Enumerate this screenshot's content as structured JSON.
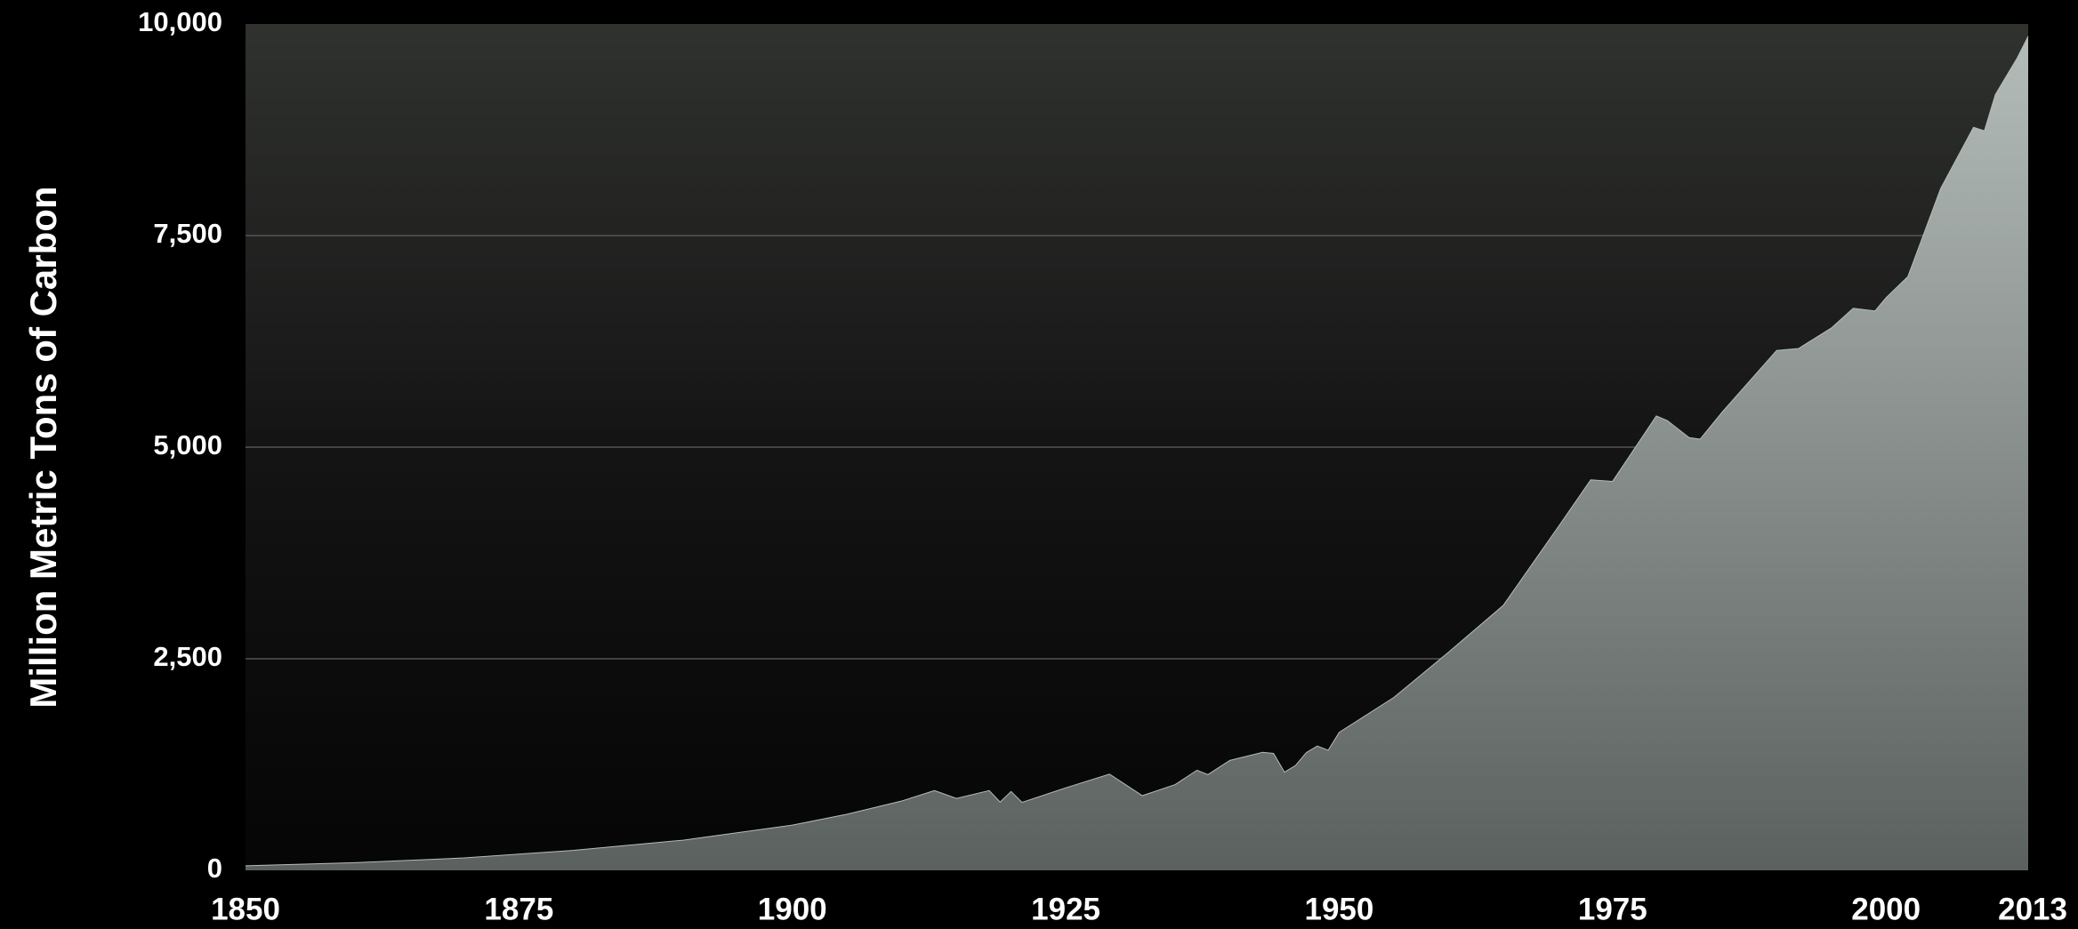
{
  "chart_data": {
    "type": "area",
    "y_label": "Million Metric Tons of Carbon",
    "x": [
      1850,
      1860,
      1870,
      1880,
      1890,
      1900,
      1905,
      1910,
      1913,
      1915,
      1918,
      1919,
      1920,
      1921,
      1925,
      1929,
      1932,
      1935,
      1937,
      1938,
      1940,
      1943,
      1944,
      1945,
      1946,
      1947,
      1948,
      1949,
      1950,
      1955,
      1960,
      1965,
      1970,
      1973,
      1975,
      1979,
      1980,
      1982,
      1983,
      1985,
      1990,
      1992,
      1995,
      1997,
      1999,
      2000,
      2002,
      2005,
      2008,
      2009,
      2010,
      2012,
      2013
    ],
    "values": [
      54,
      91,
      147,
      236,
      356,
      534,
      663,
      819,
      943,
      850,
      942,
      806,
      932,
      803,
      975,
      1137,
      882,
      1013,
      1183,
      1131,
      1299,
      1394,
      1381,
      1160,
      1238,
      1392,
      1469,
      1419,
      1630,
      2043,
      2577,
      3130,
      4053,
      4614,
      4596,
      5369,
      5315,
      5113,
      5094,
      5411,
      6143,
      6166,
      6408,
      6641,
      6610,
      6765,
      7016,
      8057,
      8779,
      8739,
      9167,
      9600,
      9855
    ],
    "xlim": [
      1850,
      2013
    ],
    "xticks": [
      1850,
      1875,
      1900,
      1925,
      1950,
      1975,
      2000,
      2013
    ],
    "ylim": [
      0,
      10000
    ],
    "yticks": [
      0,
      {
        "value": 2500,
        "label": "2,500"
      },
      {
        "value": 5000,
        "label": "5,000"
      },
      {
        "value": 7500,
        "label": "7,500"
      },
      {
        "value": 10000,
        "label": "10,000"
      }
    ],
    "grid": true
  }
}
